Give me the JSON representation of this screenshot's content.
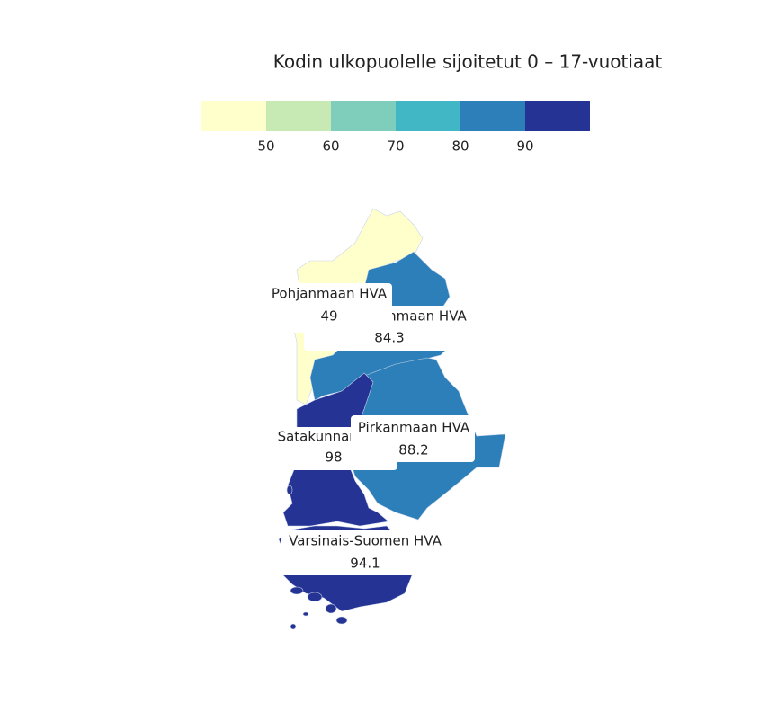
{
  "title": "Kodin ulkopuolelle sijoitetut 0 – 17-vuotiaat",
  "legend": {
    "breaks": [
      50,
      60,
      70,
      80,
      90
    ],
    "colors": [
      "#ffffcc",
      "#c7e9b4",
      "#7fcdbb",
      "#41b6c4",
      "#2c7fb8",
      "#253494"
    ]
  },
  "regions": [
    {
      "name": "Pohjanmaan HVA",
      "value": 49
    },
    {
      "name": "Etelä-Pohjanmaan HVA",
      "value": 84.3
    },
    {
      "name": "Pirkanmaan HVA",
      "value": 88.2
    },
    {
      "name": "Satakunnan HVA",
      "value": 98
    },
    {
      "name": "Varsinais-Suomen HVA",
      "value": 94.1
    }
  ]
}
